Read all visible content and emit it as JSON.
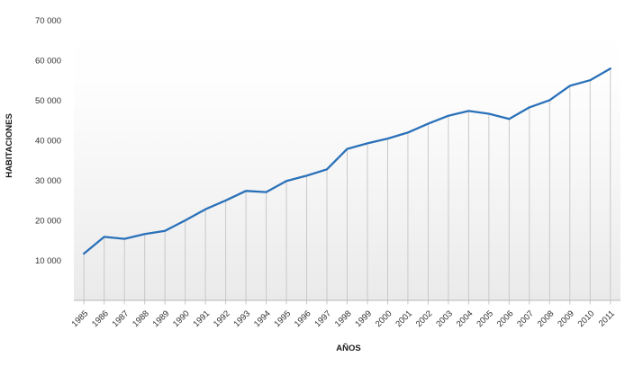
{
  "chart_data": {
    "type": "line",
    "title": "",
    "xlabel": "AÑOS",
    "ylabel": "HABITACIONES",
    "categories": [
      "1985",
      "1986",
      "1987",
      "1988",
      "1989",
      "1990",
      "1991",
      "1992",
      "1993",
      "1994",
      "1995",
      "1996",
      "1997",
      "1998",
      "1999",
      "2000",
      "2001",
      "2002",
      "2003",
      "2004",
      "2005",
      "2006",
      "2007",
      "2008",
      "2009",
      "2010",
      "2011"
    ],
    "values": [
      11700,
      15900,
      15400,
      16600,
      17400,
      20000,
      22800,
      25000,
      27400,
      27100,
      29900,
      31200,
      32800,
      37900,
      39300,
      40500,
      42000,
      44200,
      46200,
      47400,
      46700,
      45400,
      48300,
      50100,
      53700,
      55100,
      58000
    ],
    "ylim": [
      0,
      70000
    ],
    "ytick_values": [
      10000,
      20000,
      30000,
      40000,
      50000,
      60000,
      70000
    ],
    "ytick_labels": [
      "10 000",
      "20 000",
      "30 000",
      "40 000",
      "50 000",
      "60 000",
      "70 000"
    ],
    "grid": "vertical-drop-lines-only",
    "legend": "none",
    "colors": {
      "series_line": "#2a71b9",
      "drop_line": "#c9c9c9",
      "axis_line": "#b7b7b7",
      "tick_text": "#333333",
      "title_text": "#1a1a1a",
      "plot_bg_top": "#ffffff",
      "plot_bg_bottom": "#ebebeb"
    }
  }
}
